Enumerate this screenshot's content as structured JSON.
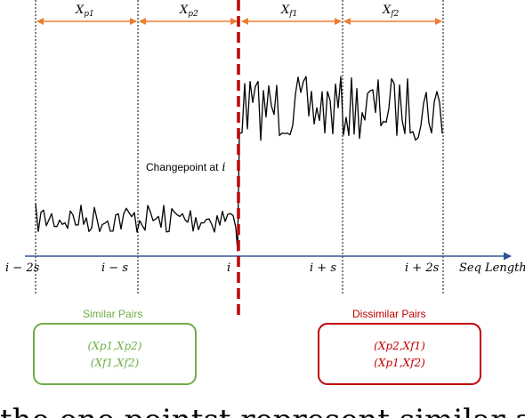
{
  "segments": [
    {
      "var": "X",
      "sub": "p1"
    },
    {
      "var": "X",
      "sub": "p2"
    },
    {
      "var": "X",
      "sub": "f1"
    },
    {
      "var": "X",
      "sub": "f2"
    }
  ],
  "changepoint_label": "Changepoint at",
  "changepoint_var": "i",
  "axis_ticks": [
    "i − 2s",
    "i − s",
    "i",
    "i + s",
    "i + 2s"
  ],
  "axis_label": "Seq  Length",
  "similar": {
    "title": "Similar Pairs",
    "line1": "(Xp1,Xp2)",
    "line2": "(Xf1,Xf2)",
    "color": "#70ad47"
  },
  "dissimilar": {
    "title": "Dissimilar Pairs",
    "line1": "(Xp2,Xf1)",
    "line2": "(Xp1,Xf2)",
    "color": "#c00000"
  },
  "colors": {
    "arrow": "#ed7d31",
    "axis": "#2f5597",
    "changepoint": "#c00000",
    "signal": "#000000"
  },
  "caption_partial": "the one pointst  represent  similar and dissimilar"
}
